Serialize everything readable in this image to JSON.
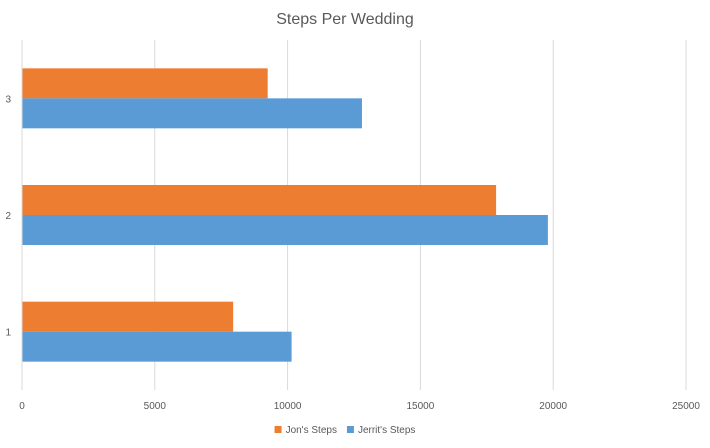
{
  "chart_data": {
    "type": "bar",
    "orientation": "horizontal",
    "title": "Steps Per Wedding",
    "xlabel": "",
    "ylabel": "",
    "categories": [
      "1",
      "2",
      "3"
    ],
    "series": [
      {
        "name": "Jon's Steps",
        "color": "#ED7D31",
        "values": [
          7950,
          17850,
          9250
        ]
      },
      {
        "name": "Jerrit's Steps",
        "color": "#5B9BD5",
        "values": [
          10150,
          19800,
          12800
        ]
      }
    ],
    "xlim": [
      0,
      25000
    ],
    "xticks": [
      "0",
      "5000",
      "10000",
      "15000",
      "20000",
      "25000"
    ],
    "grid": true,
    "legend_position": "bottom"
  }
}
